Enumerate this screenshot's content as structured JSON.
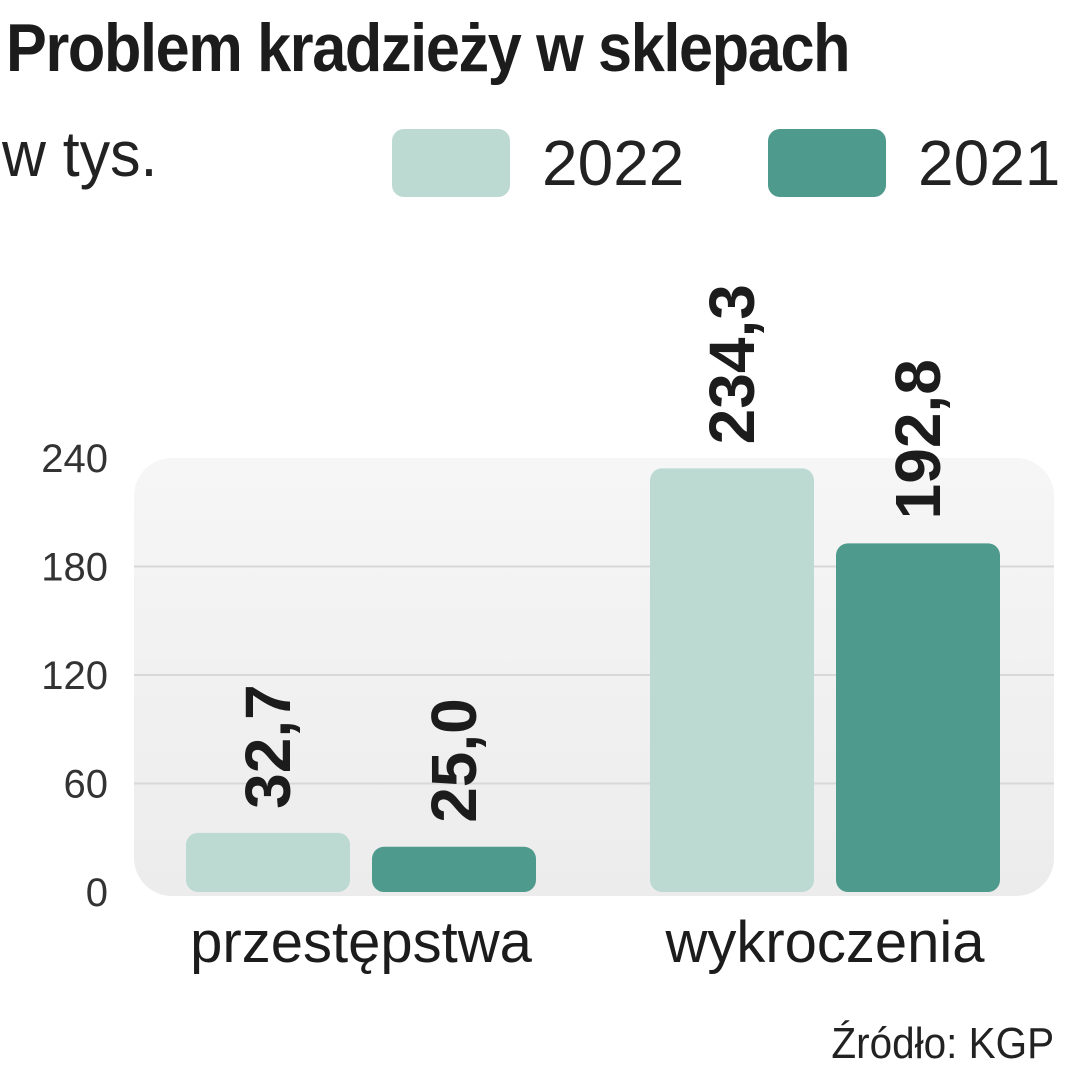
{
  "title": "Problem kradzieży w sklepach",
  "subtitle": "w tys.",
  "source": "Źródło: KGP",
  "legend": [
    {
      "label": "2022",
      "color": "#bcd9d2"
    },
    {
      "label": "2021",
      "color": "#4e9a8c"
    }
  ],
  "chart_data": {
    "type": "bar",
    "categories": [
      "przestępstwa",
      "wykroczenia"
    ],
    "series": [
      {
        "name": "2022",
        "values": [
          32.7,
          234.3
        ],
        "labels": [
          "32,7",
          "234,3"
        ],
        "color": "#bcd9d2"
      },
      {
        "name": "2021",
        "values": [
          25.0,
          192.8
        ],
        "labels": [
          "25,0",
          "192,8"
        ],
        "color": "#4e9a8c"
      }
    ],
    "yticks": [
      0,
      60,
      120,
      180,
      240
    ],
    "ylim": [
      0,
      240
    ],
    "grid": true,
    "legend_position": "top-right"
  }
}
